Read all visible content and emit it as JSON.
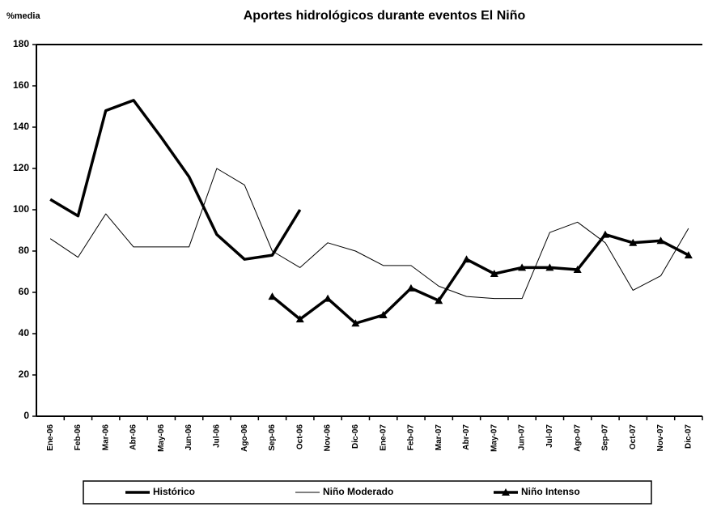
{
  "chart_data": {
    "type": "line",
    "title": "Aportes hidrológicos durante eventos El Niño",
    "y_label": "%media",
    "categories": [
      "Ene-06",
      "Feb-06",
      "Mar-06",
      "Abr-06",
      "May-06",
      "Jun-06",
      "Jul-06",
      "Ago-06",
      "Sep-06",
      "Oct-06",
      "Nov-06",
      "Dic-06",
      "Ene-07",
      "Feb-07",
      "Mar-07",
      "Abr-07",
      "May-07",
      "Jun-07",
      "Jul-07",
      "Ago-07",
      "Sep-07",
      "Oct-07",
      "Nov-07",
      "Dic-07"
    ],
    "series": [
      {
        "name": "Histórico",
        "color": "#000000",
        "width": 3.5,
        "marker": "none",
        "values": [
          105,
          97,
          148,
          153,
          135,
          116,
          88,
          76,
          78,
          100,
          null,
          null,
          null,
          null,
          null,
          null,
          null,
          null,
          null,
          null,
          null,
          null,
          null,
          null
        ]
      },
      {
        "name": "Niño Moderado",
        "color": "#000000",
        "width": 1,
        "marker": "none",
        "values": [
          86,
          77,
          98,
          82,
          82,
          82,
          120,
          112,
          80,
          72,
          84,
          80,
          73,
          73,
          63,
          58,
          57,
          57,
          89,
          94,
          84,
          61,
          68,
          91
        ]
      },
      {
        "name": "Niño Intenso",
        "color": "#000000",
        "width": 3.5,
        "marker": "triangle",
        "values": [
          null,
          null,
          null,
          null,
          null,
          null,
          null,
          null,
          58,
          47,
          57,
          45,
          49,
          62,
          56,
          76,
          69,
          72,
          72,
          71,
          88,
          84,
          85,
          78
        ]
      }
    ],
    "ylim": [
      0,
      180
    ],
    "yticks": [
      0,
      20,
      40,
      60,
      80,
      100,
      120,
      140,
      160,
      180
    ],
    "grid": false,
    "legend": "bottom"
  }
}
